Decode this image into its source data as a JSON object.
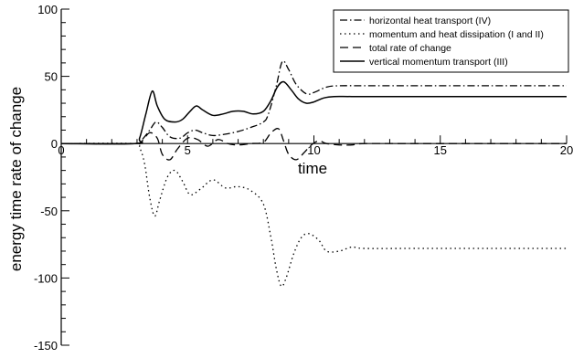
{
  "chart_data": {
    "type": "line",
    "title": "",
    "xlabel": "time",
    "ylabel": "energy time rate of change",
    "xlim": [
      0,
      20
    ],
    "ylim": [
      -150,
      100
    ],
    "x_ticks": [
      0,
      5,
      10,
      15,
      20
    ],
    "x_tick_labels": [
      "0",
      "5",
      "10",
      "15",
      "20"
    ],
    "y_ticks": [
      -150,
      -100,
      -50,
      0,
      50,
      100
    ],
    "y_tick_labels": [
      "-150",
      "-100",
      "-50",
      "0",
      "50",
      "100"
    ],
    "grid": false,
    "legend_position": "top-right",
    "series": [
      {
        "name": "horizontal heat transport (IV)",
        "style": "dashdot",
        "x": [
          0,
          2.9,
          3.2,
          3.5,
          3.75,
          4.0,
          4.3,
          4.7,
          5.0,
          5.3,
          5.6,
          6.0,
          6.5,
          7.0,
          7.5,
          8.0,
          8.2,
          8.5,
          8.75,
          9.0,
          9.3,
          9.7,
          10.0,
          10.5,
          11.0,
          12.0,
          14.0,
          17.0,
          20.0
        ],
        "y": [
          0,
          0,
          3,
          10,
          16,
          12,
          5,
          4,
          8,
          10,
          8,
          6,
          7,
          9,
          12,
          16,
          22,
          42,
          61,
          55,
          44,
          37,
          38,
          42,
          43,
          43,
          43,
          43,
          43
        ]
      },
      {
        "name": "momentum and heat dissipation (I and II)",
        "style": "dotted",
        "x": [
          0,
          2.9,
          3.1,
          3.3,
          3.5,
          3.7,
          3.9,
          4.2,
          4.5,
          4.8,
          5.1,
          5.5,
          6.0,
          6.5,
          7.0,
          7.5,
          8.0,
          8.3,
          8.5,
          8.7,
          8.9,
          9.2,
          9.5,
          9.8,
          10.2,
          10.5,
          11.0,
          11.5,
          12.0,
          14.0,
          17.0,
          20.0
        ],
        "y": [
          0,
          0,
          -3,
          -15,
          -40,
          -54,
          -42,
          -25,
          -20,
          -28,
          -38,
          -34,
          -27,
          -33,
          -32,
          -35,
          -45,
          -70,
          -92,
          -106,
          -100,
          -82,
          -70,
          -67,
          -72,
          -80,
          -80,
          -77,
          -78,
          -78,
          -78,
          -78
        ]
      },
      {
        "name": "total rate of change",
        "style": "dashed",
        "x": [
          0,
          2.9,
          3.2,
          3.5,
          3.8,
          4.0,
          4.3,
          4.6,
          5.0,
          5.4,
          5.8,
          6.2,
          6.6,
          7.0,
          7.5,
          8.0,
          8.3,
          8.6,
          8.8,
          9.0,
          9.3,
          9.6,
          9.9,
          10.2,
          10.5,
          11.0,
          11.5,
          12.0,
          14.0,
          17.0,
          20.0
        ],
        "y": [
          0,
          0,
          2,
          8,
          4,
          -8,
          -12,
          -4,
          4,
          3,
          -2,
          3,
          0,
          -1,
          0,
          1,
          8,
          11,
          2,
          -8,
          -12,
          -7,
          -1,
          2,
          0,
          -1,
          -1,
          0,
          0,
          0,
          0
        ]
      },
      {
        "name": "vertical momentum transport (III)",
        "style": "solid",
        "x": [
          0,
          2.9,
          3.1,
          3.35,
          3.6,
          3.8,
          4.1,
          4.5,
          4.8,
          5.1,
          5.35,
          5.6,
          6.0,
          6.4,
          6.8,
          7.2,
          7.6,
          8.0,
          8.3,
          8.55,
          8.8,
          9.1,
          9.4,
          9.7,
          10.0,
          10.4,
          10.8,
          11.5,
          13.0,
          16.0,
          20.0
        ],
        "y": [
          0,
          0,
          4,
          22,
          39,
          28,
          18,
          16,
          18,
          24,
          28,
          25,
          21,
          22,
          24,
          24,
          22,
          24,
          32,
          42,
          46,
          40,
          33,
          30,
          31,
          34,
          35,
          35,
          35,
          35,
          35
        ]
      }
    ]
  }
}
